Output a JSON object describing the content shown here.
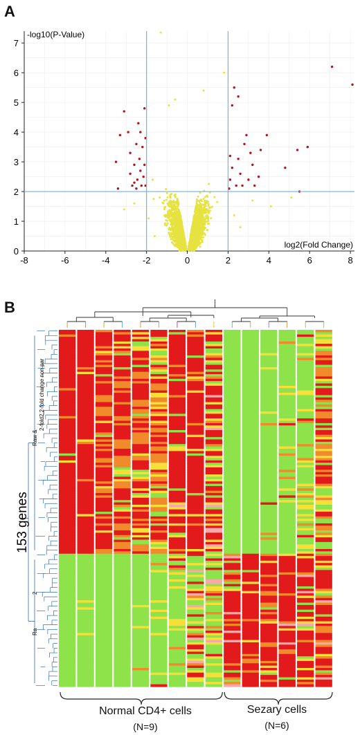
{
  "panel_a": {
    "letter": "A",
    "chart_data": {
      "type": "scatter",
      "title": "",
      "xlabel": "log2(Fold Change)",
      "ylabel": "-log10(P-Value)",
      "xlim": [
        -8,
        8.2
      ],
      "ylim": [
        0,
        7.4
      ],
      "xticks": [
        "-8",
        "-6",
        "-4",
        "-2",
        "0",
        "2",
        "4",
        "6",
        "8"
      ],
      "yticks": [
        "0",
        "1",
        "2",
        "3",
        "4",
        "5",
        "6",
        "7"
      ],
      "grid": true,
      "thresholds": {
        "x": [
          -2,
          2
        ],
        "y": 2
      },
      "colors": {
        "not_significant": "#e6e340",
        "significant": "#b5121b",
        "threshold": "#6fb3df"
      },
      "significant_points": [
        [
          7.1,
          6.2
        ],
        [
          8.1,
          5.6
        ],
        [
          5.9,
          3.5
        ],
        [
          5.4,
          3.4
        ],
        [
          5.5,
          2.0
        ],
        [
          4.8,
          2.8
        ],
        [
          3.9,
          3.9
        ],
        [
          3.6,
          3.4
        ],
        [
          3.5,
          2.5
        ],
        [
          3.3,
          2.2
        ],
        [
          3.2,
          2.9
        ],
        [
          3.0,
          2.4
        ],
        [
          2.9,
          3.9
        ],
        [
          2.7,
          2.2
        ],
        [
          2.6,
          2.6
        ],
        [
          2.5,
          3.1
        ],
        [
          2.4,
          2.2
        ],
        [
          2.3,
          5.5
        ],
        [
          2.2,
          4.9
        ],
        [
          2.1,
          3.2
        ],
        [
          2.1,
          2.4
        ],
        [
          2.2,
          2.8
        ],
        [
          2.5,
          5.2
        ],
        [
          2.8,
          3.6
        ],
        [
          3.1,
          3.3
        ],
        [
          2.05,
          2.1
        ],
        [
          -3.1,
          4.7
        ],
        [
          -3.3,
          3.9
        ],
        [
          -3.4,
          2.1
        ],
        [
          -3.5,
          3.0
        ],
        [
          -2.9,
          4.0
        ],
        [
          -2.8,
          3.3
        ],
        [
          -2.7,
          2.2
        ],
        [
          -2.6,
          2.9
        ],
        [
          -2.5,
          3.6
        ],
        [
          -2.45,
          2.4
        ],
        [
          -2.4,
          4.3
        ],
        [
          -2.35,
          3.1
        ],
        [
          -2.3,
          2.7
        ],
        [
          -2.25,
          2.2
        ],
        [
          -2.2,
          3.5
        ],
        [
          -2.15,
          2.5
        ],
        [
          -2.1,
          4.8
        ],
        [
          -2.1,
          2.9
        ],
        [
          -2.05,
          2.2
        ],
        [
          -2.05,
          3.8
        ],
        [
          -2.6,
          2.3
        ],
        [
          -2.8,
          2.6
        ],
        [
          -2.3,
          4.0
        ],
        [
          -2.5,
          2.1
        ]
      ]
    }
  },
  "panel_b": {
    "letter": "B",
    "gene_count_label": "153 genes",
    "dendrogram_labels": [
      "Raw &",
      "2-fold2.2-fold change non par",
      "2",
      "Ra"
    ],
    "groups": [
      {
        "label": "Normal CD4+ cells",
        "n": "(N=9)"
      },
      {
        "label": "Sezary cells",
        "n": "(N=6)"
      }
    ],
    "heatmap": {
      "columns": 15,
      "normal_columns": 9,
      "rows": 153,
      "up_block_rows": 96,
      "colors": {
        "high": "#e31a1c",
        "mid": "#f7df3a",
        "low": "#8ee24a",
        "pale": "#f7a8a8"
      }
    }
  }
}
